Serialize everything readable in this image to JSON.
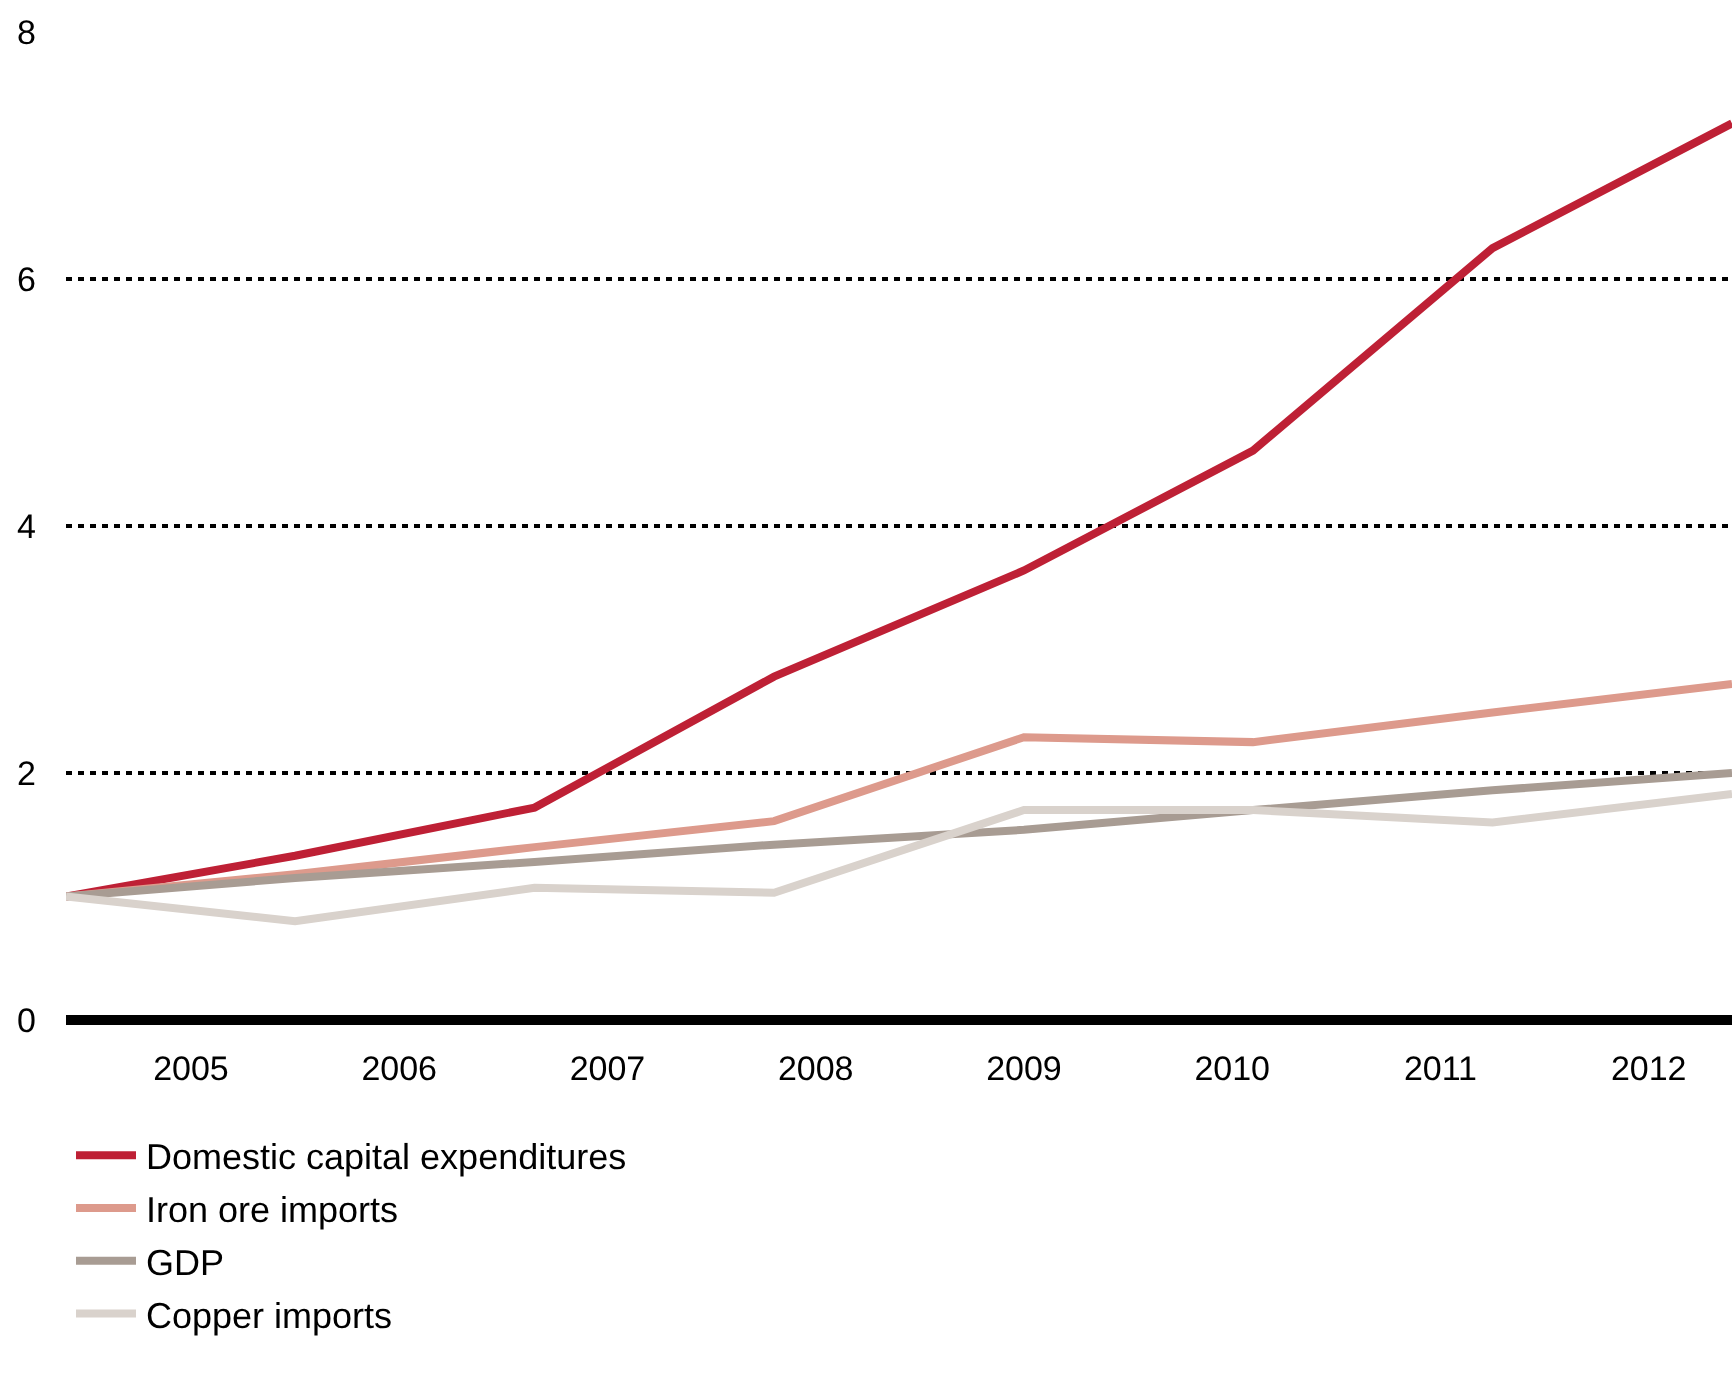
{
  "chart_data": {
    "type": "line",
    "x": [
      2004.4,
      2005.5,
      2006.65,
      2007.8,
      2009.0,
      2010.1,
      2011.25,
      2012.4
    ],
    "xlim": [
      2004.4,
      2012.4
    ],
    "xticks": [
      2005,
      2006,
      2007,
      2008,
      2009,
      2010,
      2011,
      2012
    ],
    "ylim": [
      0,
      8
    ],
    "yticks": [
      0,
      2,
      4,
      6,
      8
    ],
    "grid": "y",
    "legend": "bottom",
    "line_style": "solid",
    "series": [
      {
        "name": "Domestic capital expenditures",
        "color": "#be2035",
        "values": [
          1.0,
          1.33,
          1.72,
          2.78,
          3.64,
          4.61,
          6.25,
          7.26
        ]
      },
      {
        "name": "Iron ore imports",
        "color": "#dd9a8c",
        "values": [
          1.0,
          1.18,
          1.4,
          1.61,
          2.29,
          2.25,
          2.49,
          2.72
        ]
      },
      {
        "name": "GDP",
        "color": "#a89c93",
        "values": [
          1.0,
          1.15,
          1.28,
          1.42,
          1.54,
          1.7,
          1.86,
          2.0
        ]
      },
      {
        "name": "Copper imports",
        "color": "#d9d2cc",
        "values": [
          1.0,
          0.8,
          1.07,
          1.03,
          1.7,
          1.7,
          1.6,
          1.83
        ]
      }
    ]
  }
}
